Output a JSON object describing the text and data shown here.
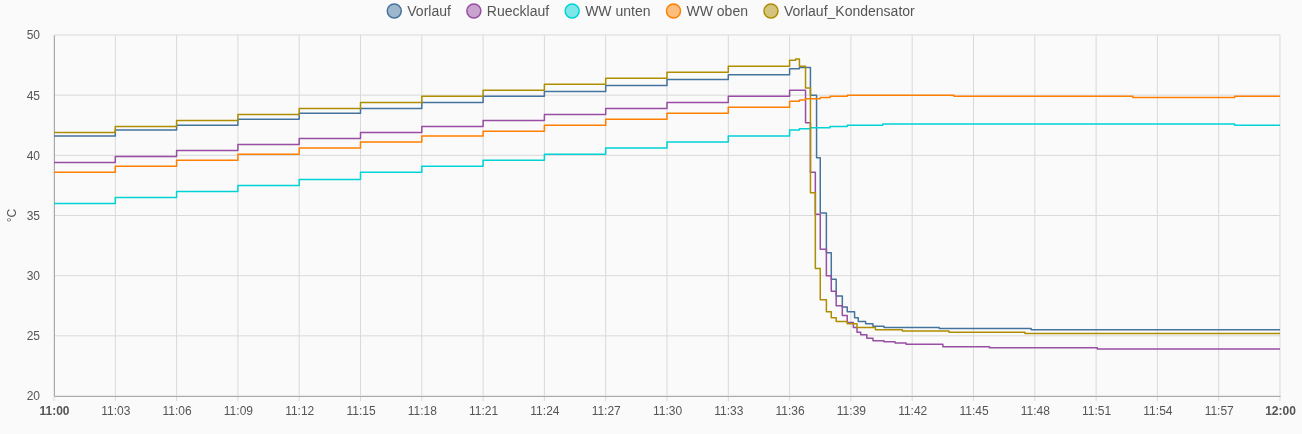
{
  "chart_data": {
    "type": "step",
    "ylabel": "°C",
    "legend": "top",
    "grid": true,
    "marker": "none",
    "line_style": "solid",
    "xlim": [
      11,
      12
    ],
    "ylim": [
      20,
      50
    ],
    "yticks": [
      20,
      25,
      30,
      35,
      40,
      45,
      50
    ],
    "xticks": [
      {
        "value": 11,
        "label": "11:00"
      },
      {
        "value": 11.05,
        "label": "11:03"
      },
      {
        "value": 11.1,
        "label": "11:06"
      },
      {
        "value": 11.15,
        "label": "11:09"
      },
      {
        "value": 11.2,
        "label": "11:12"
      },
      {
        "value": 11.25,
        "label": "11:15"
      },
      {
        "value": 11.3,
        "label": "11:18"
      },
      {
        "value": 11.35,
        "label": "11:21"
      },
      {
        "value": 11.4,
        "label": "11:24"
      },
      {
        "value": 11.45,
        "label": "11:27"
      },
      {
        "value": 11.5,
        "label": "11:30"
      },
      {
        "value": 11.55,
        "label": "11:33"
      },
      {
        "value": 11.6,
        "label": "11:36"
      },
      {
        "value": 11.65,
        "label": "11:39"
      },
      {
        "value": 11.7,
        "label": "11:42"
      },
      {
        "value": 11.75,
        "label": "11:45"
      },
      {
        "value": 11.8,
        "label": "11:48"
      },
      {
        "value": 11.85,
        "label": "11:51"
      },
      {
        "value": 11.9,
        "label": "11:54"
      },
      {
        "value": 11.95,
        "label": "11:57"
      },
      {
        "value": 12,
        "label": "12:00"
      }
    ],
    "series": [
      {
        "name": "Vorlauf",
        "color": "#44739e",
        "x": [
          11,
          11.05,
          11.1,
          11.15,
          11.2,
          11.25,
          11.3,
          11.35,
          11.4,
          11.45,
          11.5,
          11.55,
          11.6,
          11.608,
          11.617,
          11.622,
          11.625,
          11.63,
          11.634,
          11.638,
          11.643,
          11.647,
          11.653,
          11.656,
          11.662,
          11.668,
          11.677,
          11.722,
          11.797,
          12
        ],
        "values": [
          41.6,
          42.1,
          42.5,
          43.0,
          43.5,
          43.9,
          44.4,
          44.9,
          45.3,
          45.8,
          46.3,
          46.7,
          47.2,
          47.3,
          45.0,
          39.8,
          35.2,
          31.9,
          29.7,
          28.3,
          27.4,
          27.0,
          26.5,
          26.2,
          26.0,
          25.8,
          25.7,
          25.6,
          25.5,
          25.5
        ]
      },
      {
        "name": "Ruecklauf",
        "color": "#984ea3",
        "x": [
          11,
          11.05,
          11.1,
          11.15,
          11.2,
          11.25,
          11.3,
          11.35,
          11.4,
          11.45,
          11.5,
          11.55,
          11.6,
          11.613,
          11.617,
          11.621,
          11.625,
          11.63,
          11.634,
          11.638,
          11.643,
          11.647,
          11.652,
          11.655,
          11.658,
          11.663,
          11.668,
          11.677,
          11.686,
          11.695,
          11.725,
          11.763,
          11.851,
          12
        ],
        "values": [
          39.4,
          39.9,
          40.4,
          40.9,
          41.4,
          41.9,
          42.4,
          42.9,
          43.4,
          43.9,
          44.4,
          44.9,
          45.4,
          42.7,
          38.6,
          35.1,
          32.2,
          30.0,
          28.7,
          27.5,
          26.7,
          26.1,
          25.7,
          25.3,
          25.1,
          24.8,
          24.6,
          24.5,
          24.4,
          24.3,
          24.1,
          24.0,
          23.9,
          23.9
        ]
      },
      {
        "name": "WW unten",
        "color": "#00d2d5",
        "x": [
          11,
          11.05,
          11.1,
          11.15,
          11.2,
          11.25,
          11.3,
          11.35,
          11.4,
          11.45,
          11.5,
          11.55,
          11.6,
          11.608,
          11.617,
          11.633,
          11.647,
          11.676,
          11.963,
          12
        ],
        "values": [
          36.0,
          36.5,
          37.0,
          37.5,
          38.0,
          38.6,
          39.1,
          39.6,
          40.1,
          40.6,
          41.1,
          41.6,
          42.1,
          42.2,
          42.3,
          42.4,
          42.5,
          42.6,
          42.5,
          42.5
        ]
      },
      {
        "name": "WW oben",
        "color": "#ff7f00",
        "x": [
          11,
          11.05,
          11.1,
          11.15,
          11.2,
          11.25,
          11.3,
          11.35,
          11.4,
          11.45,
          11.5,
          11.55,
          11.6,
          11.608,
          11.613,
          11.625,
          11.633,
          11.647,
          11.734,
          11.88,
          11.963,
          12
        ],
        "values": [
          38.6,
          39.1,
          39.6,
          40.1,
          40.6,
          41.1,
          41.6,
          42.0,
          42.5,
          43.0,
          43.5,
          44.0,
          44.5,
          44.6,
          44.7,
          44.8,
          44.9,
          45.0,
          44.9,
          44.8,
          44.9,
          44.9
        ]
      },
      {
        "name": "Vorlauf_Kondensator",
        "color": "#af8d00",
        "x": [
          11,
          11.05,
          11.1,
          11.15,
          11.2,
          11.25,
          11.3,
          11.35,
          11.4,
          11.45,
          11.5,
          11.55,
          11.6,
          11.605,
          11.608,
          11.613,
          11.617,
          11.621,
          11.625,
          11.63,
          11.634,
          11.638,
          11.647,
          11.655,
          11.67,
          11.692,
          11.73,
          11.792,
          12
        ],
        "values": [
          41.9,
          42.4,
          42.9,
          43.4,
          43.9,
          44.4,
          44.9,
          45.4,
          45.9,
          46.4,
          46.9,
          47.4,
          47.9,
          48.0,
          47.4,
          45.6,
          36.9,
          30.6,
          28.0,
          27.0,
          26.5,
          26.2,
          26.0,
          25.7,
          25.5,
          25.4,
          25.3,
          25.2,
          25.2
        ]
      }
    ]
  }
}
